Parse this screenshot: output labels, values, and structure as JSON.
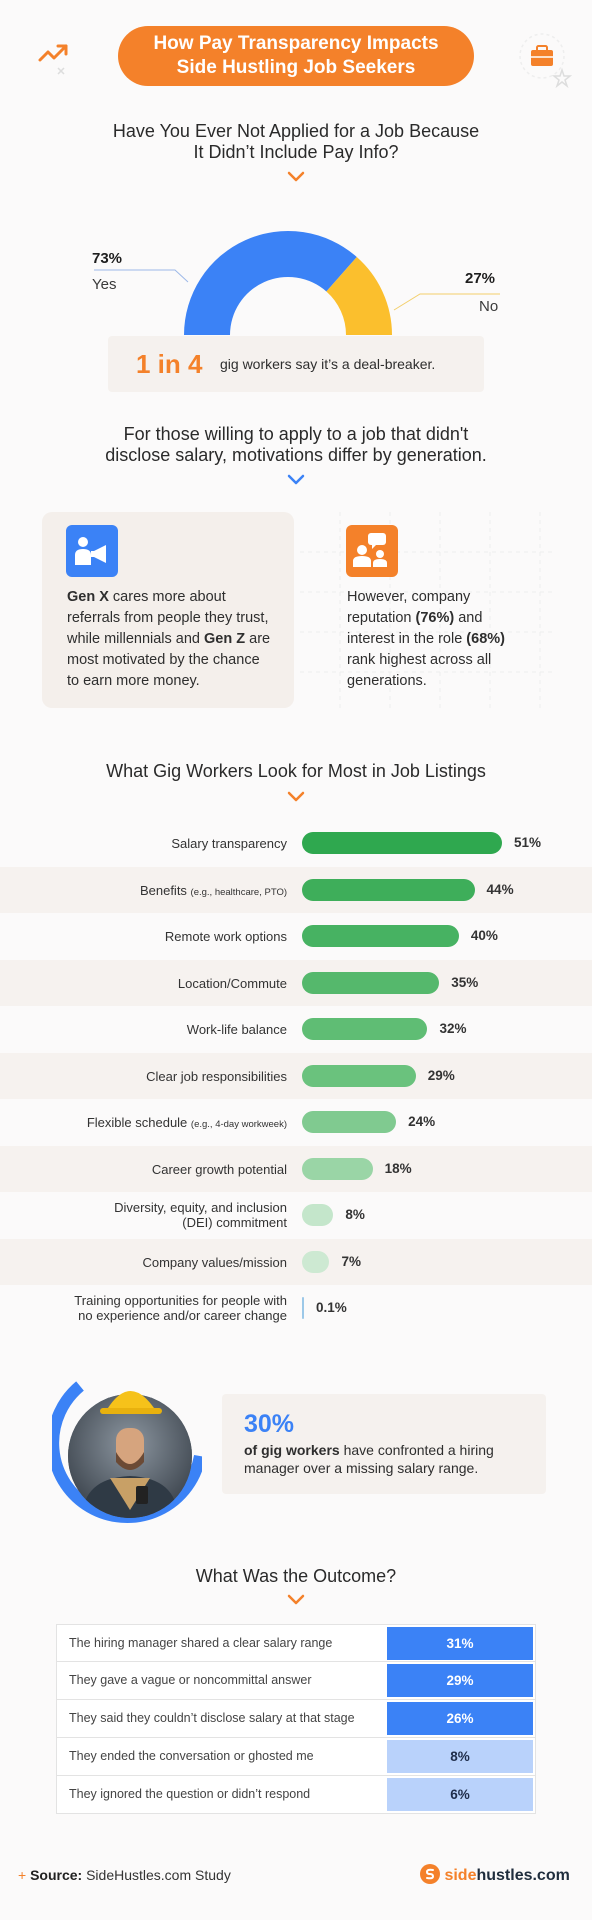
{
  "title": {
    "line1": "How Pay Transparency Impacts",
    "line2": "Side Hustling Job Seekers"
  },
  "section1": {
    "heading_line1": "Have You Ever Not Applied for a Job Because",
    "heading_line2": "It Didn’t Include Pay Info?",
    "donut": [
      {
        "label": "Yes",
        "pct": "73%",
        "value": 73,
        "color": "#3b82f6"
      },
      {
        "label": "No",
        "pct": "27%",
        "value": 27,
        "color": "#fbbf2d"
      }
    ],
    "callout_big": "1 in 4",
    "callout_text": "gig workers say it’s a deal-breaker."
  },
  "section2": {
    "heading_line1": "For those willing to apply to a job that didn't",
    "heading_line2": "disclose salary, motivations differ by generation.",
    "card_left": {
      "lines": [
        [
          {
            "t": "Gen X",
            "b": true
          },
          {
            "t": " cares more about",
            "b": false
          }
        ],
        [
          {
            "t": "referrals from people they trust,",
            "b": false
          }
        ],
        [
          {
            "t": "while millennials and ",
            "b": false
          },
          {
            "t": "Gen Z",
            "b": true
          },
          {
            "t": " are",
            "b": false
          }
        ],
        [
          {
            "t": "most motivated by the chance",
            "b": false
          }
        ],
        [
          {
            "t": "to earn more money.",
            "b": false
          }
        ]
      ]
    },
    "card_right": {
      "lines": [
        [
          {
            "t": "However, company",
            "b": false
          }
        ],
        [
          {
            "t": "reputation ",
            "b": false
          },
          {
            "t": "(76%)",
            "b": true
          },
          {
            "t": " and",
            "b": false
          }
        ],
        [
          {
            "t": "interest in the role ",
            "b": false
          },
          {
            "t": "(68%)",
            "b": true
          }
        ],
        [
          {
            "t": "rank highest across all",
            "b": false
          }
        ],
        [
          {
            "t": "generations.",
            "b": false
          }
        ]
      ]
    },
    "icon_left": "speaker-megaphone-icon",
    "icon_right": "people-chat-icon"
  },
  "section3": {
    "heading": "What Gig Workers Look for Most in Job Listings",
    "rows": [
      {
        "label": "Salary transparency",
        "note": "",
        "pct": "51%",
        "value": 51,
        "color": "#2fa84f"
      },
      {
        "label": "Benefits ",
        "note": "(e.g., healthcare, PTO)",
        "pct": "44%",
        "value": 44,
        "color": "#3eae5a"
      },
      {
        "label": "Remote work options",
        "note": "",
        "pct": "40%",
        "value": 40,
        "color": "#47b262"
      },
      {
        "label": "Location/Commute",
        "note": "",
        "pct": "35%",
        "value": 35,
        "color": "#55b86c"
      },
      {
        "label": "Work-life balance",
        "note": "",
        "pct": "32%",
        "value": 32,
        "color": "#5fbd74"
      },
      {
        "label": "Clear job responsibilities",
        "note": "",
        "pct": "29%",
        "value": 29,
        "color": "#6ac27d"
      },
      {
        "label": "Flexible schedule ",
        "note": "(e.g., 4-day workweek)",
        "pct": "24%",
        "value": 24,
        "color": "#80ca90"
      },
      {
        "label": "Career growth potential",
        "note": "",
        "pct": "18%",
        "value": 18,
        "color": "#9ad5a6"
      },
      {
        "label": "Diversity, equity, and inclusion",
        "label2": "(DEI) commitment",
        "note": "",
        "pct": "8%",
        "value": 8,
        "color": "#c4e6cb"
      },
      {
        "label": "Company values/mission",
        "note": "",
        "pct": "7%",
        "value": 7,
        "color": "#cde9d2"
      },
      {
        "label": "Training opportunities for people with",
        "label2": "no experience and/or career change",
        "note": "",
        "pct": "0.1%",
        "value": 0.1,
        "color": "#9cc8e8"
      }
    ]
  },
  "section4": {
    "big": "30%",
    "text_bold": "of gig workers",
    "text_rest": " have confronted a hiring manager over a missing salary range."
  },
  "section5": {
    "heading": "What Was the Outcome?",
    "rows": [
      {
        "label": "The hiring manager shared a clear salary range",
        "pct": "31%",
        "strong": true
      },
      {
        "label": "They gave a vague or noncommittal answer",
        "pct": "29%",
        "strong": true
      },
      {
        "label": "They said they couldn’t disclose salary at that stage",
        "pct": "26%",
        "strong": true
      },
      {
        "label": "They ended the conversation or ghosted me",
        "pct": "8%",
        "strong": false
      },
      {
        "label": "They ignored the question or didn’t respond",
        "pct": "6%",
        "strong": false
      }
    ],
    "strong_color": "#3b82f6",
    "light_color": "#b9d2fb"
  },
  "footer": {
    "source_label": "Source:",
    "source_text": " SideHustles.com Study",
    "logo_a": "side",
    "logo_b": "hustles.com"
  }
}
